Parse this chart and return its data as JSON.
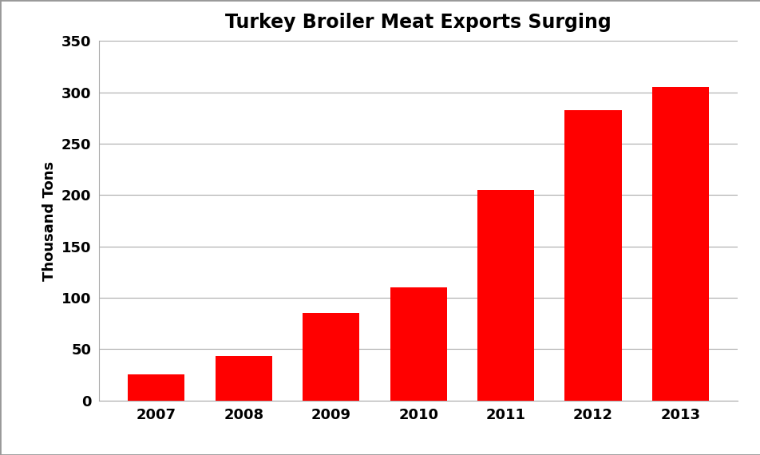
{
  "title": "Turkey Broiler Meat Exports Surging",
  "xlabel": "",
  "ylabel": "Thousand Tons",
  "categories": [
    "2007",
    "2008",
    "2009",
    "2010",
    "2011",
    "2012",
    "2013"
  ],
  "values": [
    25,
    43,
    85,
    110,
    205,
    283,
    305
  ],
  "bar_color": "#ff0000",
  "ylim": [
    0,
    350
  ],
  "yticks": [
    0,
    50,
    100,
    150,
    200,
    250,
    300,
    350
  ],
  "title_fontsize": 17,
  "axis_label_fontsize": 13,
  "tick_fontsize": 13,
  "background_color": "#ffffff",
  "grid_color": "#aaaaaa",
  "border_color": "#999999"
}
